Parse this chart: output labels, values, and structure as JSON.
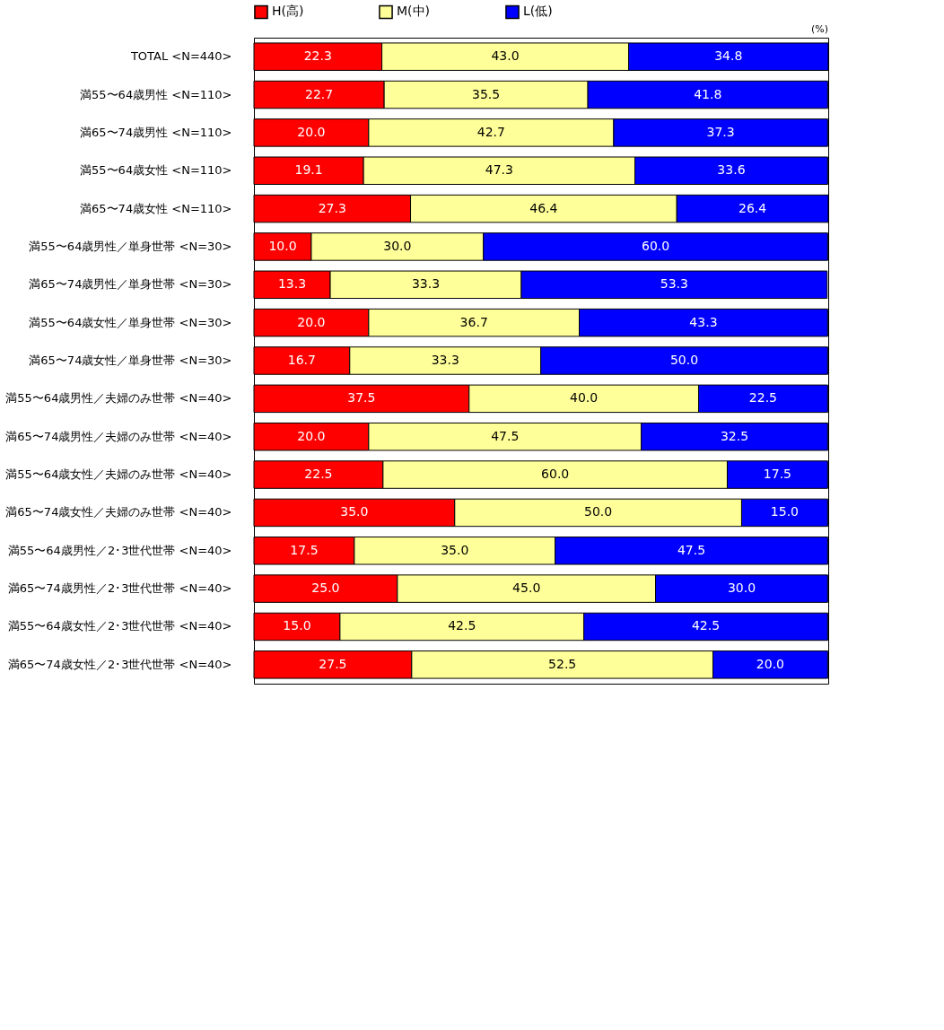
{
  "chart_data": {
    "type": "bar",
    "orientation": "horizontal",
    "stacked": true,
    "legend": "top",
    "tick_labels": "y",
    "categories": [
      "TOTAL <N=440>",
      "満55〜64歳男性 <N=110>",
      "満65〜74歳男性 <N=110>",
      "満55〜64歳女性 <N=110>",
      "満65〜74歳女性 <N=110>",
      "満55〜64歳男性／単身世帯 <N=30>",
      "満65〜74歳男性／単身世帯 <N=30>",
      "満55〜64歳女性／単身世帯 <N=30>",
      "満65〜74歳女性／単身世帯 <N=30>",
      "満55〜64歳男性／夫婦のみ世帯 <N=40>",
      "満65〜74歳男性／夫婦のみ世帯 <N=40>",
      "満55〜64歳女性／夫婦のみ世帯 <N=40>",
      "満65〜74歳女性／夫婦のみ世帯 <N=40>",
      "満55〜64歳男性／2･3世代世帯 <N=40>",
      "満65〜74歳男性／2･3世代世帯 <N=40>",
      "満55〜64歳女性／2･3世代世帯 <N=40>",
      "満65〜74歳女性／2･3世代世帯 <N=40>"
    ],
    "series": [
      {
        "name": "H(高)",
        "color": "#ff0000",
        "values": [
          22.3,
          22.7,
          20.0,
          19.1,
          27.3,
          10.0,
          13.3,
          20.0,
          16.7,
          37.5,
          20.0,
          22.5,
          35.0,
          17.5,
          25.0,
          15.0,
          27.5
        ],
        "value_labels": [
          "22.3",
          "22.7",
          "20.0",
          "19.1",
          "27.3",
          "10.0",
          "13.3",
          "20.0",
          "16.7",
          "37.5",
          "20.0",
          "22.5",
          "35.0",
          "17.5",
          "25.0",
          "15.0",
          "27.5"
        ]
      },
      {
        "name": "M(中)",
        "color": "#ffff99",
        "values": [
          43.0,
          35.5,
          42.7,
          47.3,
          46.4,
          30.0,
          33.3,
          36.7,
          33.3,
          40.0,
          47.5,
          60.0,
          50.0,
          35.0,
          45.0,
          42.5,
          52.5
        ],
        "value_labels": [
          "43.0",
          "35.5",
          "42.7",
          "47.3",
          "46.4",
          "30.0",
          "33.3",
          "36.7",
          "33.3",
          "40.0",
          "47.5",
          "60.0",
          "50.0",
          "35.0",
          "45.0",
          "42.5",
          "52.5"
        ]
      },
      {
        "name": "L(低)",
        "color": "#0000ff",
        "values": [
          34.8,
          41.8,
          37.3,
          33.6,
          26.4,
          60.0,
          53.3,
          43.3,
          50.0,
          22.5,
          32.5,
          17.5,
          15.0,
          47.5,
          30.0,
          42.5,
          20.0
        ],
        "value_labels": [
          "34.8",
          "41.8",
          "37.3",
          "33.6",
          "26.4",
          "60.0",
          "53.3",
          "43.3",
          "50.0",
          "22.5",
          "32.5",
          "17.5",
          "15.0",
          "47.5",
          "30.0",
          "42.5",
          "20.0"
        ]
      }
    ],
    "annotations": [
      "(%)"
    ]
  }
}
